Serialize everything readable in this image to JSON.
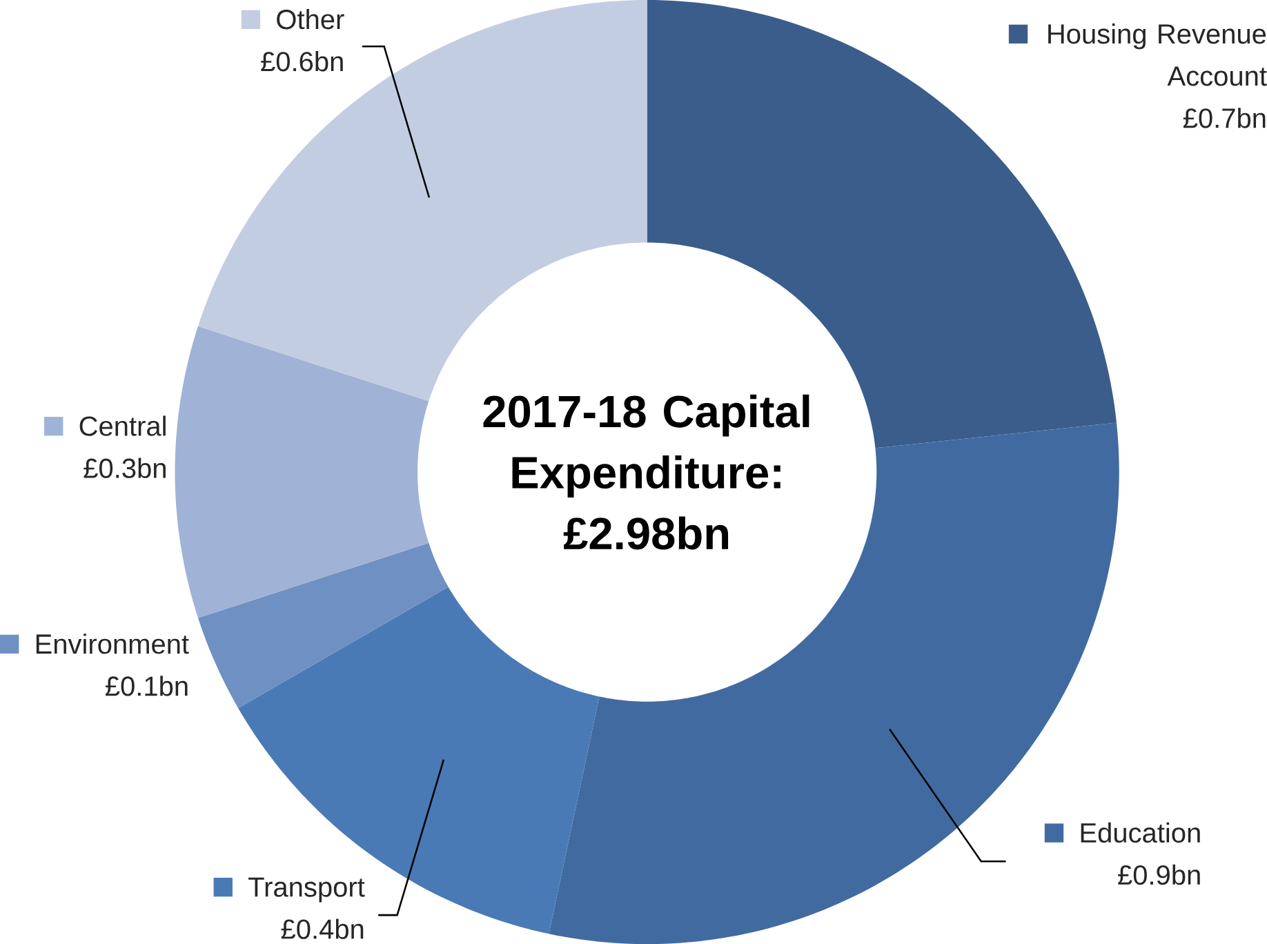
{
  "chart_data": {
    "type": "donut",
    "title": "2017-18 Capital Expenditure: £2.98bn",
    "categories": [
      "Housing Revenue Account",
      "Education",
      "Transport",
      "Environment",
      "Central",
      "Other"
    ],
    "values": [
      0.7,
      0.9,
      0.4,
      0.1,
      0.3,
      0.6
    ],
    "value_labels": [
      "£0.7bn",
      "£0.9bn",
      "£0.4bn",
      "£0.1bn",
      "£0.3bn",
      "£0.6bn"
    ],
    "legend": "right",
    "colors": [
      "#3a5d8c",
      "#416ba0",
      "#4a7ab5",
      "#6f90c3",
      "#a0b3d6",
      "#c3cde2"
    ]
  }
}
